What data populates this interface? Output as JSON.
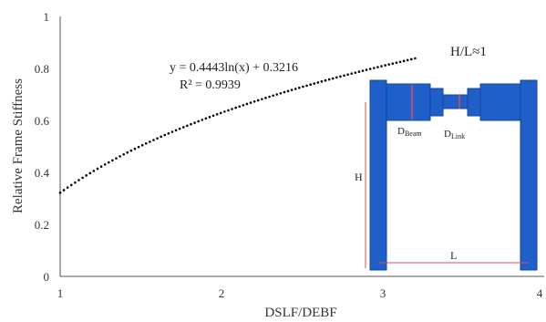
{
  "chart_data": {
    "type": "line",
    "title": "",
    "xlabel": "DSLF/DEBF",
    "ylabel": "Relative Frame Stiffness",
    "xlim": [
      1,
      4
    ],
    "ylim": [
      0,
      1
    ],
    "x_ticks": [
      "1",
      "2",
      "3",
      "4"
    ],
    "y_ticks": [
      "0",
      "0.2",
      "0.4",
      "0.6",
      "0.8",
      "1"
    ],
    "trendline": {
      "equation": "y = 0.4443ln(x) + 0.3216",
      "r_squared": "R² = 0.9939",
      "coef_a": 0.4443,
      "coef_b": 0.3216,
      "x_start": 1,
      "x_end": 3.2,
      "style": "dotted",
      "color": "#000000"
    },
    "inset": {
      "ratio_label": "H/L≈1",
      "beam_label_main": "D",
      "beam_label_sub": "Beam",
      "link_label_main": "D",
      "link_label_sub": "Link",
      "height_label": "H",
      "length_label": "L",
      "frame_color": "#1f5fc9",
      "dimension_color": "#e8465a"
    }
  }
}
